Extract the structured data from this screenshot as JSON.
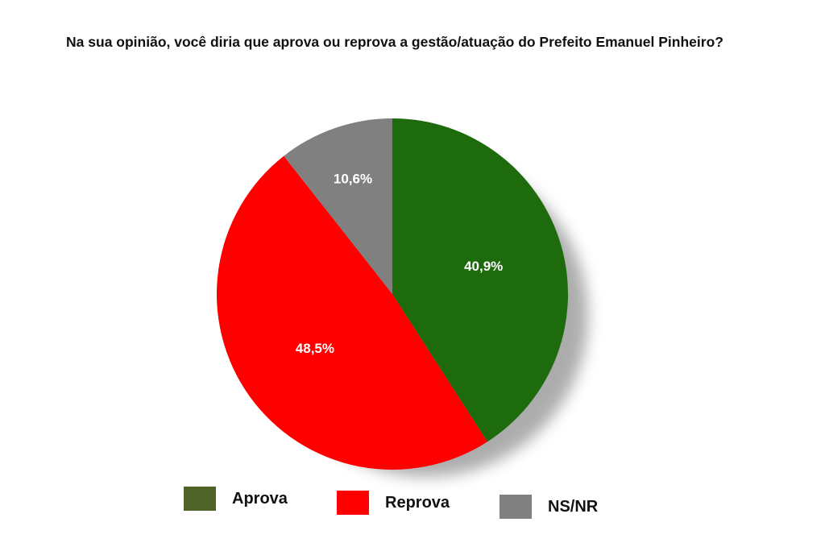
{
  "chart_data": {
    "type": "pie",
    "title": "Na sua opinião, você diria que aprova ou reprova a gestão/atuação do Prefeito Emanuel Pinheiro?",
    "slices": [
      {
        "name": "Aprova",
        "value": 40.9,
        "label": "40,9%",
        "color": "#1e6b0e",
        "legend_color": "#4f6228"
      },
      {
        "name": "Reprova",
        "value": 48.5,
        "label": "48,5%",
        "color": "#ff0000",
        "legend_color": "#ff0000"
      },
      {
        "name": "NS/NR",
        "value": 10.6,
        "label": "10,6%",
        "color": "#808080",
        "legend_color": "#808080"
      }
    ],
    "start_angle_deg": 0,
    "direction": "clockwise",
    "legend_position": "bottom"
  }
}
